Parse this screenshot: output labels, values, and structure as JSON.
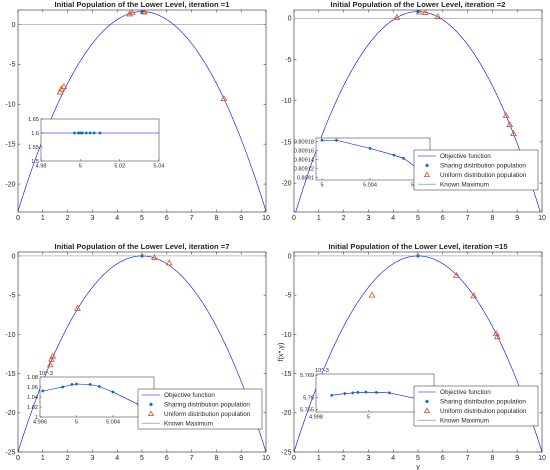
{
  "colors": {
    "objective": "#0000ff",
    "sharing": "#0072bd",
    "uniform": "#d95319",
    "known": "#7f7f7f",
    "axes": "#262626"
  },
  "legend_labels": {
    "objective": "Objective function",
    "sharing": "Sharing distribution population",
    "uniform": "Uniform distribution population",
    "known": "Known Maximum"
  },
  "icons": {
    "sharing": "asterisk-marker",
    "uniform": "triangle-marker"
  },
  "chart_data": [
    {
      "type": "line",
      "title": "Initial Population of the Lower Level, iteration =1",
      "xlabel": "",
      "ylabel": "",
      "xlim": [
        0,
        10
      ],
      "ylim": [
        -23.5,
        1.8
      ],
      "xticks": [
        "0",
        "1",
        "2",
        "3",
        "4",
        "5",
        "6",
        "7",
        "8",
        "9",
        "10"
      ],
      "yticks": [
        "0",
        "-5",
        "-10",
        "-15",
        "-20"
      ],
      "objective_function": "-(y-5)^2 + 1.6",
      "known_maximum": 0,
      "sharing_points": [
        [
          5.0,
          1.6
        ]
      ],
      "uniform_points": [
        [
          1.7,
          -8.5
        ],
        [
          1.75,
          -8.1
        ],
        [
          1.85,
          -7.8
        ],
        [
          4.5,
          1.3
        ],
        [
          4.6,
          1.45
        ],
        [
          5.1,
          1.55
        ],
        [
          5.05,
          1.6
        ],
        [
          8.3,
          -9.3
        ],
        [
          10.0,
          -23.4
        ]
      ],
      "inset": {
        "xlim": [
          4.98,
          5.04
        ],
        "ylim": [
          1.5,
          1.65
        ],
        "xticks": [
          "4.98",
          "5",
          "5.02",
          "5.04"
        ],
        "yticks": [
          "1.65",
          "1.6",
          "1.55",
          "1.5"
        ],
        "sharing_points": [
          [
            4.997,
            1.6
          ],
          [
            4.999,
            1.6
          ],
          [
            5.0,
            1.6
          ],
          [
            5.001,
            1.6
          ],
          [
            5.003,
            1.6
          ],
          [
            5.005,
            1.6
          ],
          [
            5.007,
            1.6
          ],
          [
            5.01,
            1.6
          ]
        ]
      },
      "show_legend": false
    },
    {
      "type": "line",
      "title": "Initial Population of the Lower Level, iteration =2",
      "xlabel": "",
      "ylabel": "",
      "xlim": [
        0,
        10
      ],
      "ylim": [
        -23.5,
        1
      ],
      "xticks": [
        "0",
        "1",
        "2",
        "3",
        "4",
        "5",
        "6",
        "7",
        "8",
        "9",
        "10"
      ],
      "yticks": [
        "0",
        "-5",
        "-10",
        "-15",
        "-20"
      ],
      "objective_function": "-(y-5)^2 + 0.8092",
      "known_maximum": 0,
      "sharing_points": [
        [
          5.0,
          0.8
        ]
      ],
      "uniform_points": [
        [
          4.15,
          0.1
        ],
        [
          5.05,
          0.75
        ],
        [
          5.3,
          0.7
        ],
        [
          5.8,
          0.2
        ],
        [
          8.55,
          -11.8
        ],
        [
          8.7,
          -12.9
        ],
        [
          8.85,
          -14.0
        ]
      ],
      "inset": {
        "xlim": [
          4.9995,
          5.009
        ],
        "ylim": [
          0.809095,
          0.809188
        ],
        "xticks": [
          "5",
          "5.004",
          "5.008"
        ],
        "yticks": [
          "0.80918",
          "0.80916",
          "0.80914",
          "0.80912",
          "0.8091"
        ],
        "sharing_points": [
          [
            5.0,
            0.809183
          ],
          [
            5.0012,
            0.809183
          ],
          [
            5.004,
            0.809165
          ],
          [
            5.006,
            0.80915
          ],
          [
            5.0068,
            0.809143
          ],
          [
            5.0085,
            0.80911
          ]
        ]
      },
      "show_legend": true
    },
    {
      "type": "line",
      "title": "Initial Population of the Lower Level, iteration =7",
      "xlabel": "",
      "ylabel": "",
      "xlim": [
        0,
        10
      ],
      "ylim": [
        -25,
        0.5
      ],
      "xticks": [
        "0",
        "1",
        "2",
        "3",
        "4",
        "5",
        "6",
        "7",
        "8",
        "9",
        "10"
      ],
      "yticks": [
        "0",
        "-5",
        "-10",
        "-15",
        "-20",
        "-25"
      ],
      "objective_function": "-(y-5)^2",
      "known_maximum": 0,
      "sharing_points": [
        [
          5.0,
          0.0
        ]
      ],
      "uniform_points": [
        [
          1.3,
          -13.9
        ],
        [
          1.35,
          -13.2
        ],
        [
          1.4,
          -12.8
        ],
        [
          2.4,
          -6.7
        ],
        [
          5.5,
          -0.2
        ],
        [
          6.1,
          -0.9
        ]
      ],
      "inset": {
        "xlim": [
          4.996,
          5.0085
        ],
        "ylim": [
          1.0,
          1.08
        ],
        "xticks": [
          "4.996",
          "5",
          "5.004",
          "5.008"
        ],
        "yticks": [
          "1.08",
          "1.06",
          "1.04",
          "1.02",
          "1"
        ],
        "exponent": "10^-3",
        "sharing_points": [
          [
            4.9963,
            1.052
          ],
          [
            4.9985,
            1.06
          ],
          [
            4.9995,
            1.065
          ],
          [
            5.0,
            1.066
          ],
          [
            5.0015,
            1.065
          ],
          [
            5.0025,
            1.061
          ],
          [
            5.004,
            1.05
          ],
          [
            5.0068,
            1.025
          ]
        ]
      },
      "show_legend": true
    },
    {
      "type": "line",
      "title": "Initial Population of the Lower Level, iteration =15",
      "xlabel": "y",
      "ylabel": "f(x*,y)",
      "xlim": [
        0,
        10
      ],
      "ylim": [
        -25,
        0.5
      ],
      "xticks": [
        "0",
        "1",
        "2",
        "3",
        "4",
        "5",
        "6",
        "7",
        "8",
        "9",
        "10"
      ],
      "yticks": [
        "0",
        "-5",
        "-10",
        "-15",
        "-20",
        "-25"
      ],
      "objective_function": "-(y-5)^2",
      "known_maximum": 0,
      "sharing_points": [
        [
          5.0,
          0.0
        ]
      ],
      "uniform_points": [
        [
          3.15,
          -5.0
        ],
        [
          6.55,
          -2.5
        ],
        [
          7.25,
          -5.1
        ],
        [
          8.15,
          -9.9
        ],
        [
          8.2,
          -10.3
        ]
      ],
      "inset": {
        "xlim": [
          4.998,
          5.0025
        ],
        "ylim": [
          5.754,
          5.7695
        ],
        "xticks": [
          "4.998",
          "5",
          "5.002"
        ],
        "yticks": [
          "5.769",
          "5.76",
          "5.755"
        ],
        "exponent": "10^-3",
        "sharing_points": [
          [
            4.9986,
            5.7608
          ],
          [
            4.9991,
            5.7615
          ],
          [
            4.9994,
            5.7618
          ],
          [
            4.9996,
            5.762
          ],
          [
            4.9999,
            5.7621
          ],
          [
            5.0003,
            5.762
          ],
          [
            5.0008,
            5.7618
          ],
          [
            5.0021,
            5.7588
          ]
        ]
      },
      "show_legend": true
    }
  ]
}
